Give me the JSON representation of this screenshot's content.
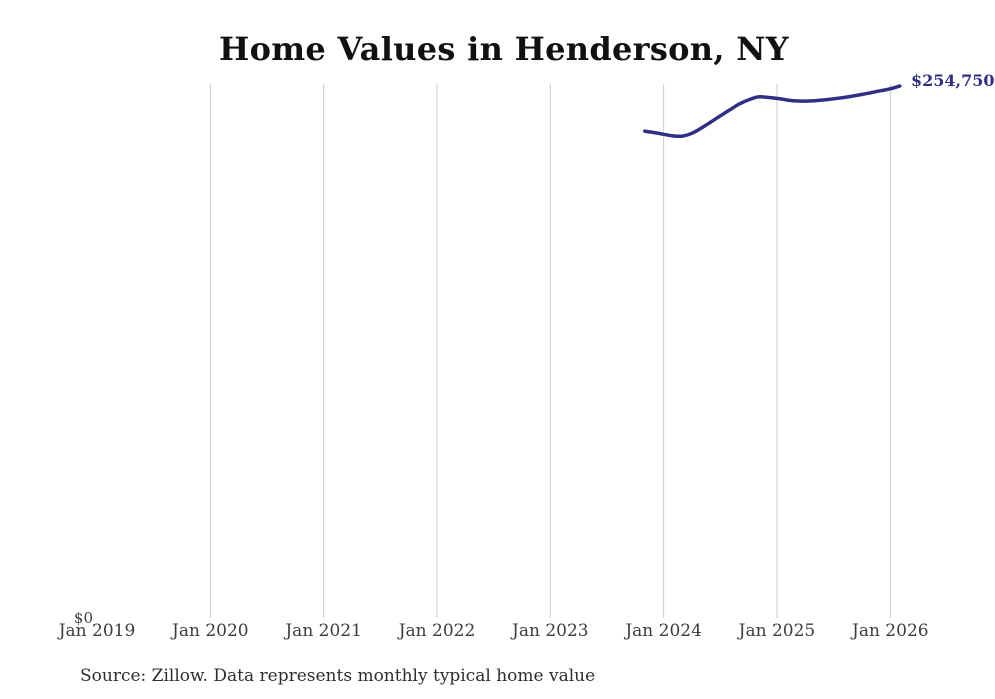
{
  "title": "Home Values in Henderson, NY",
  "footer": "Source: Zillow. Data represents monthly typical home value",
  "colors": {
    "line": "#312e85",
    "gridline": "#cccccc",
    "tick_text": "#3d3d3d",
    "title_text": "#111111",
    "footer_text": "#2e2e2e"
  },
  "chart_data": {
    "type": "line",
    "title": "Home Values in Henderson, NY",
    "xlabel": "",
    "ylabel": "",
    "grid": "vertical-only",
    "legend": "none",
    "ylim": [
      0,
      255000
    ],
    "y_zero_label": "$0",
    "end_label": "$254,750",
    "x_ticks": [
      {
        "label": "Jan 2019",
        "year": 2019,
        "gridline": false
      },
      {
        "label": "Jan 2020",
        "year": 2020,
        "gridline": true
      },
      {
        "label": "Jan 2021",
        "year": 2021,
        "gridline": true
      },
      {
        "label": "Jan 2022",
        "year": 2022,
        "gridline": true
      },
      {
        "label": "Jan 2023",
        "year": 2023,
        "gridline": true
      },
      {
        "label": "Jan 2024",
        "year": 2024,
        "gridline": true
      },
      {
        "label": "Jan 2025",
        "year": 2025,
        "gridline": true
      },
      {
        "label": "Jan 2026",
        "year": 2026,
        "gridline": true
      }
    ],
    "series": [
      {
        "name": "Monthly typical home value",
        "points": [
          [
            "2023-11",
            233100
          ],
          [
            "2023-12",
            232400
          ],
          [
            "2024-01",
            231600
          ],
          [
            "2024-02",
            230800
          ],
          [
            "2024-03",
            230700
          ],
          [
            "2024-04",
            232100
          ],
          [
            "2024-05",
            234600
          ],
          [
            "2024-06",
            237500
          ],
          [
            "2024-07",
            240400
          ],
          [
            "2024-08",
            243300
          ],
          [
            "2024-09",
            246100
          ],
          [
            "2024-10",
            248100
          ],
          [
            "2024-11",
            249500
          ],
          [
            "2024-12",
            249300
          ],
          [
            "2025-01",
            248800
          ],
          [
            "2025-02",
            248100
          ],
          [
            "2025-03",
            247600
          ],
          [
            "2025-04",
            247500
          ],
          [
            "2025-05",
            247700
          ],
          [
            "2025-06",
            248100
          ],
          [
            "2025-07",
            248600
          ],
          [
            "2025-08",
            249200
          ],
          [
            "2025-09",
            249900
          ],
          [
            "2025-10",
            250700
          ],
          [
            "2025-11",
            251600
          ],
          [
            "2025-12",
            252500
          ],
          [
            "2026-01",
            253400
          ],
          [
            "2026-02",
            254750
          ]
        ]
      }
    ]
  }
}
